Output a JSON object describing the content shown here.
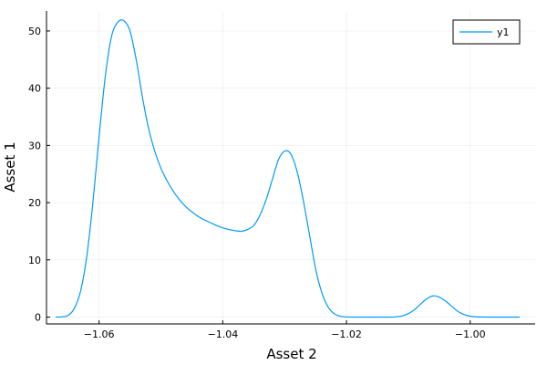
{
  "chart_data": {
    "type": "line",
    "xlabel": "Asset 2",
    "ylabel": "Asset 1",
    "xlim": [
      -1.0685,
      -0.9895
    ],
    "ylim": [
      -1.2,
      53.5
    ],
    "xticks": [
      -1.06,
      -1.04,
      -1.02,
      -1.0
    ],
    "xtick_labels": [
      "−1.06",
      "−1.04",
      "−1.02",
      "−1.00"
    ],
    "yticks": [
      0,
      10,
      20,
      30,
      40,
      50
    ],
    "ytick_labels": [
      "0",
      "10",
      "20",
      "30",
      "40",
      "50"
    ],
    "grid": true,
    "legend_position": "top-right",
    "series": [
      {
        "name": "y1",
        "color": "#009AFA",
        "x": [
          -1.067,
          -1.066,
          -1.065,
          -1.064,
          -1.063,
          -1.062,
          -1.061,
          -1.06,
          -1.059,
          -1.058,
          -1.057,
          -1.056,
          -1.055,
          -1.054,
          -1.053,
          -1.052,
          -1.051,
          -1.05,
          -1.049,
          -1.048,
          -1.047,
          -1.046,
          -1.045,
          -1.044,
          -1.043,
          -1.042,
          -1.041,
          -1.04,
          -1.039,
          -1.038,
          -1.037,
          -1.036,
          -1.035,
          -1.034,
          -1.033,
          -1.032,
          -1.031,
          -1.03,
          -1.029,
          -1.028,
          -1.027,
          -1.026,
          -1.025,
          -1.024,
          -1.023,
          -1.022,
          -1.021,
          -1.02,
          -1.019,
          -1.018,
          -1.017,
          -1.016,
          -1.015,
          -1.014,
          -1.013,
          -1.012,
          -1.011,
          -1.01,
          -1.009,
          -1.008,
          -1.007,
          -1.006,
          -1.005,
          -1.004,
          -1.003,
          -1.002,
          -1.001,
          -1.0,
          -0.999,
          -0.998,
          -0.997,
          -0.996,
          -0.995,
          -0.994,
          -0.993,
          -0.992
        ],
        "y": [
          0.0,
          0.05,
          0.3,
          1.5,
          4.5,
          10.5,
          20.0,
          31.5,
          42.0,
          49.0,
          51.5,
          51.8,
          50.0,
          45.0,
          38.5,
          33.0,
          29.0,
          26.0,
          23.8,
          22.0,
          20.5,
          19.3,
          18.4,
          17.6,
          17.0,
          16.5,
          16.0,
          15.6,
          15.3,
          15.1,
          15.0,
          15.3,
          16.0,
          17.8,
          20.5,
          24.0,
          27.5,
          29.0,
          28.5,
          25.5,
          20.5,
          14.5,
          8.5,
          4.3,
          1.8,
          0.6,
          0.15,
          0.03,
          0.0,
          0.0,
          0.0,
          0.0,
          0.0,
          0.0,
          0.0,
          0.05,
          0.2,
          0.6,
          1.3,
          2.3,
          3.2,
          3.7,
          3.5,
          2.8,
          1.9,
          1.0,
          0.45,
          0.15,
          0.05,
          0.01,
          0.0,
          0.0,
          0.0,
          0.0,
          0.0,
          0.0
        ]
      }
    ]
  }
}
